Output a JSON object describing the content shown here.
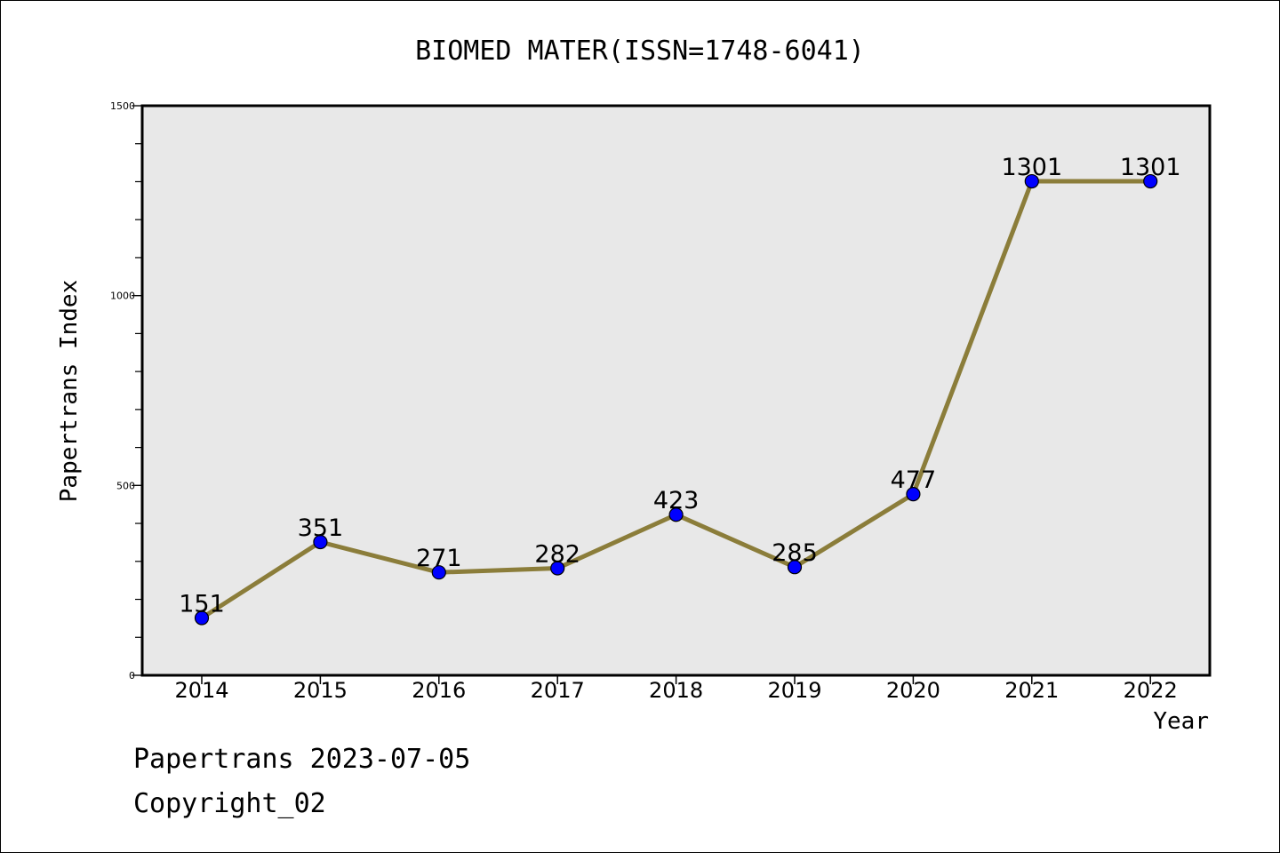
{
  "chart_data": {
    "type": "line",
    "title": "BIOMED MATER(ISSN=1748-6041)",
    "xlabel": "Year",
    "ylabel": "Papertrans Index",
    "categories": [
      "2014",
      "2015",
      "2016",
      "2017",
      "2018",
      "2019",
      "2020",
      "2021",
      "2022"
    ],
    "values": [
      151,
      351,
      271,
      282,
      423,
      285,
      477,
      1301,
      1301
    ],
    "data_labels": [
      "151",
      "351",
      "271",
      "282",
      "423",
      "285",
      "477",
      "1301",
      "1301"
    ],
    "ylim": [
      0,
      1500
    ],
    "y_ticks": [
      "0",
      "500",
      "1000",
      "1500"
    ],
    "y_tick_values": [
      0,
      500,
      1000,
      1500
    ],
    "y_minor_step": 100,
    "grid": false,
    "colors": {
      "line": "#8B7D3A",
      "marker": "#0000FF",
      "plot_bg": "#E8E8E8"
    }
  },
  "footer": {
    "line1": "Papertrans 2023-07-05",
    "line2": "Copyright_02"
  }
}
